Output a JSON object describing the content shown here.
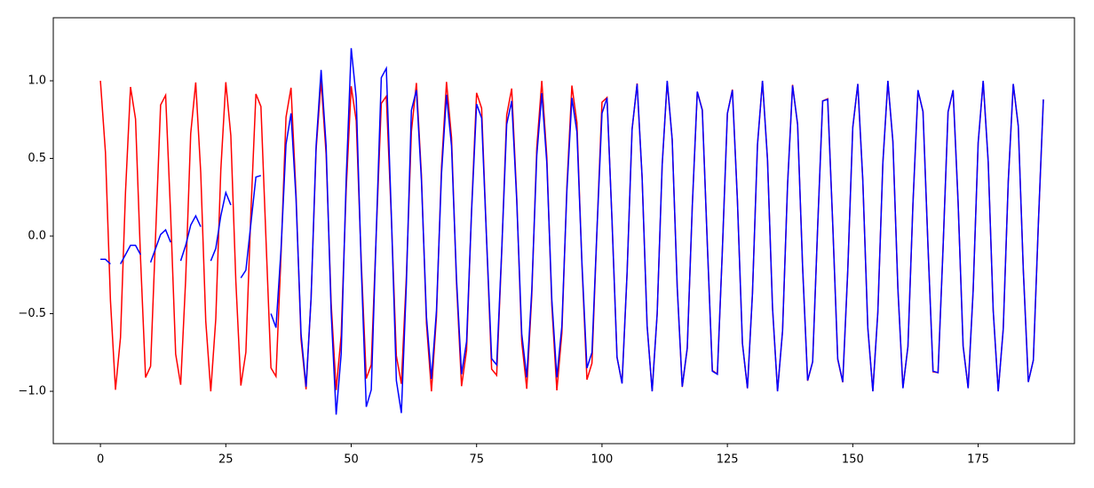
{
  "chart_data": {
    "type": "line",
    "x": [
      0,
      1,
      2,
      3,
      4,
      5,
      6,
      7,
      8,
      9,
      10,
      11,
      12,
      13,
      14,
      15,
      16,
      17,
      18,
      19,
      20,
      21,
      22,
      23,
      24,
      25,
      26,
      27,
      28,
      29,
      30,
      31,
      32,
      33,
      34,
      35,
      36,
      37,
      38,
      39,
      40,
      41,
      42,
      43,
      44,
      45,
      46,
      47,
      48,
      49,
      50,
      51,
      52,
      53,
      54,
      55,
      56,
      57,
      58,
      59,
      60,
      61,
      62,
      63,
      64,
      65,
      66,
      67,
      68,
      69,
      70,
      71,
      72,
      73,
      74,
      75,
      76,
      77,
      78,
      79,
      80,
      81,
      82,
      83,
      84,
      85,
      86,
      87,
      88,
      89,
      90,
      91,
      92,
      93,
      94,
      95,
      96,
      97,
      98,
      99,
      100,
      101,
      102,
      103,
      104,
      105,
      106,
      107,
      108,
      109,
      110,
      111,
      112,
      113,
      114,
      115,
      116,
      117,
      118,
      119,
      120,
      121,
      122,
      123,
      124,
      125,
      126,
      127,
      128,
      129,
      130,
      131,
      132,
      133,
      134,
      135,
      136,
      137,
      138,
      139,
      140,
      141,
      142,
      143,
      144,
      145,
      146,
      147,
      148,
      149,
      150,
      151,
      152,
      153,
      154,
      155,
      156,
      157,
      158,
      159,
      160,
      161,
      162,
      163,
      164,
      165,
      166,
      167,
      168,
      169,
      170,
      171,
      172,
      173,
      174,
      175,
      176,
      177,
      178,
      179,
      180,
      181,
      182,
      183,
      184,
      185,
      186,
      187,
      188
    ],
    "series": [
      {
        "color": "#ff0000",
        "values": [
          1.0,
          0.54,
          -0.416,
          -0.99,
          -0.654,
          0.284,
          0.96,
          0.754,
          -0.146,
          -0.911,
          -0.839,
          0.004,
          0.844,
          0.907,
          0.137,
          -0.76,
          -0.958,
          -0.275,
          0.66,
          0.989,
          0.408,
          -0.548,
          -1.0,
          -0.533,
          0.424,
          0.991,
          0.647,
          -0.292,
          -0.963,
          -0.748,
          0.154,
          0.915,
          0.834,
          -0.013,
          -0.849,
          -0.904,
          -0.128,
          0.765,
          0.955,
          0.267,
          -0.667,
          -0.987,
          -0.4,
          0.555,
          1.0,
          0.525,
          -0.432,
          -0.992,
          -0.64,
          0.3,
          0.965,
          0.742,
          -0.163,
          -0.918,
          -0.829,
          0.022,
          0.854,
          0.9,
          0.12,
          -0.771,
          -0.952,
          -0.258,
          0.673,
          0.986,
          0.392,
          -0.562,
          -1.0,
          -0.517,
          0.44,
          0.993,
          0.634,
          -0.309,
          -0.967,
          -0.736,
          0.172,
          0.922,
          0.824,
          -0.031,
          -0.857,
          -0.897,
          -0.11,
          0.779,
          0.95,
          0.249,
          -0.68,
          -0.984,
          -0.384,
          0.57,
          0.999,
          0.51,
          -0.448,
          -0.994,
          -0.626,
          0.317,
          0.969,
          0.73,
          -0.18,
          -0.925,
          -0.819,
          0.039,
          0.862,
          0.892,
          0.102,
          -0.782,
          -0.947,
          -0.241,
          0.686,
          0.983,
          0.375,
          -0.577,
          -0.999,
          -0.502,
          0.456,
          0.995,
          0.62,
          -0.326,
          -0.972,
          -0.724,
          0.189,
          0.929,
          0.814,
          -0.048,
          -0.866,
          -0.888,
          -0.093,
          0.788,
          0.944,
          0.232,
          -0.693,
          -0.981,
          -0.368,
          0.585,
          0.999,
          0.494,
          -0.464,
          -0.996,
          -0.612,
          0.334,
          0.974,
          0.718,
          -0.198,
          -0.932,
          -0.81,
          0.057,
          0.87,
          0.884,
          0.084,
          -0.794,
          -0.942,
          -0.224,
          0.699,
          0.979,
          0.358,
          -0.592,
          -0.998,
          -0.486,
          0.471,
          0.997,
          0.606,
          -0.342,
          -0.976,
          -0.711,
          0.206,
          0.935,
          0.804,
          -0.066,
          -0.874,
          -0.88,
          -0.075,
          0.799,
          0.938,
          0.215,
          -0.706,
          -0.977,
          -0.351,
          0.599,
          0.997,
          0.478,
          -0.479,
          -0.998,
          -0.597,
          0.351,
          0.978,
          0.705,
          -0.215,
          -0.938,
          -0.8,
          0.075,
          0.878
        ]
      },
      {
        "color": "#0000ff",
        "values": [
          -0.15,
          -0.15,
          -0.18,
          null,
          -0.18,
          -0.12,
          -0.06,
          -0.06,
          -0.12,
          null,
          -0.17,
          -0.08,
          0.01,
          0.04,
          -0.04,
          null,
          -0.16,
          -0.06,
          0.07,
          0.13,
          0.06,
          null,
          -0.16,
          -0.08,
          0.13,
          0.28,
          0.2,
          null,
          -0.27,
          -0.22,
          0.08,
          0.38,
          0.39,
          null,
          -0.5,
          -0.59,
          -0.09,
          0.59,
          0.79,
          0.24,
          -0.63,
          -0.97,
          -0.4,
          0.58,
          1.07,
          0.58,
          -0.49,
          -1.15,
          -0.76,
          0.37,
          1.21,
          0.89,
          -0.2,
          -1.1,
          -0.99,
          0.03,
          1.02,
          1.08,
          0.14,
          -0.93,
          -1.14,
          -0.31,
          0.81,
          0.94,
          0.36,
          -0.52,
          -0.92,
          -0.48,
          0.4,
          0.91,
          0.58,
          -0.28,
          -0.89,
          -0.68,
          0.16,
          0.85,
          0.76,
          -0.03,
          -0.79,
          -0.83,
          -0.1,
          0.72,
          0.87,
          0.23,
          -0.63,
          -0.91,
          -0.35,
          0.52,
          0.92,
          0.47,
          -0.41,
          -0.91,
          -0.58,
          0.29,
          0.89,
          0.67,
          -0.17,
          -0.85,
          -0.75,
          0.04,
          0.79,
          0.89,
          0.1,
          -0.78,
          -0.95,
          -0.24,
          0.69,
          0.98,
          0.38,
          -0.58,
          -1.0,
          -0.5,
          0.46,
          1.0,
          0.62,
          -0.33,
          -0.97,
          -0.72,
          0.19,
          0.93,
          0.81,
          -0.05,
          -0.87,
          -0.89,
          -0.09,
          0.79,
          0.94,
          0.23,
          -0.69,
          -0.98,
          -0.37,
          0.59,
          1.0,
          0.49,
          -0.46,
          -1.0,
          -0.61,
          0.33,
          0.97,
          0.72,
          -0.2,
          -0.93,
          -0.81,
          0.06,
          0.87,
          0.88,
          0.08,
          -0.79,
          -0.94,
          -0.22,
          0.7,
          0.98,
          0.36,
          -0.59,
          -1.0,
          -0.49,
          0.47,
          1.0,
          0.61,
          -0.34,
          -0.98,
          -0.71,
          0.21,
          0.94,
          0.8,
          -0.07,
          -0.87,
          -0.88,
          -0.08,
          0.8,
          0.94,
          0.22,
          -0.71,
          -0.98,
          -0.35,
          0.6,
          1.0,
          0.48,
          -0.48,
          -1.0,
          -0.6,
          0.35,
          0.98,
          0.71,
          -0.22,
          -0.94,
          -0.8,
          0.08,
          0.88
        ]
      }
    ],
    "xlim": [
      -9.4,
      194.2
    ],
    "ylim": [
      -1.337,
      1.406
    ],
    "xticks": [
      0,
      25,
      50,
      75,
      100,
      125,
      150,
      175
    ],
    "yticks": [
      {
        "value": -1,
        "label": "−1.0"
      },
      {
        "value": -0.5,
        "label": "−0.5"
      },
      {
        "value": 0,
        "label": "0.0"
      },
      0.5,
      {
        "value": 1,
        "label": "1.0"
      }
    ],
    "grid": false
  }
}
